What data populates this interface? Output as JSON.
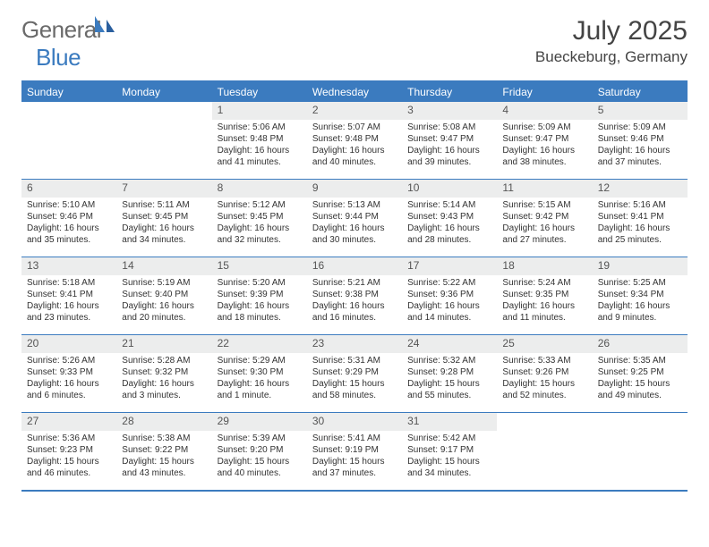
{
  "brand": {
    "part1": "General",
    "part2": "Blue"
  },
  "title": "July 2025",
  "location": "Bueckeburg, Germany",
  "colors": {
    "accent": "#3b7bbf",
    "headerText": "#ffffff",
    "dayNumBg": "#eceded",
    "bodyText": "#333333",
    "logoGray": "#6a6a6a"
  },
  "weekdays": [
    "Sunday",
    "Monday",
    "Tuesday",
    "Wednesday",
    "Thursday",
    "Friday",
    "Saturday"
  ],
  "weeks": [
    [
      {
        "n": "",
        "sr": "",
        "ss": "",
        "dl": "",
        "empty": true
      },
      {
        "n": "",
        "sr": "",
        "ss": "",
        "dl": "",
        "empty": true
      },
      {
        "n": "1",
        "sr": "Sunrise: 5:06 AM",
        "ss": "Sunset: 9:48 PM",
        "dl": "Daylight: 16 hours and 41 minutes."
      },
      {
        "n": "2",
        "sr": "Sunrise: 5:07 AM",
        "ss": "Sunset: 9:48 PM",
        "dl": "Daylight: 16 hours and 40 minutes."
      },
      {
        "n": "3",
        "sr": "Sunrise: 5:08 AM",
        "ss": "Sunset: 9:47 PM",
        "dl": "Daylight: 16 hours and 39 minutes."
      },
      {
        "n": "4",
        "sr": "Sunrise: 5:09 AM",
        "ss": "Sunset: 9:47 PM",
        "dl": "Daylight: 16 hours and 38 minutes."
      },
      {
        "n": "5",
        "sr": "Sunrise: 5:09 AM",
        "ss": "Sunset: 9:46 PM",
        "dl": "Daylight: 16 hours and 37 minutes."
      }
    ],
    [
      {
        "n": "6",
        "sr": "Sunrise: 5:10 AM",
        "ss": "Sunset: 9:46 PM",
        "dl": "Daylight: 16 hours and 35 minutes."
      },
      {
        "n": "7",
        "sr": "Sunrise: 5:11 AM",
        "ss": "Sunset: 9:45 PM",
        "dl": "Daylight: 16 hours and 34 minutes."
      },
      {
        "n": "8",
        "sr": "Sunrise: 5:12 AM",
        "ss": "Sunset: 9:45 PM",
        "dl": "Daylight: 16 hours and 32 minutes."
      },
      {
        "n": "9",
        "sr": "Sunrise: 5:13 AM",
        "ss": "Sunset: 9:44 PM",
        "dl": "Daylight: 16 hours and 30 minutes."
      },
      {
        "n": "10",
        "sr": "Sunrise: 5:14 AM",
        "ss": "Sunset: 9:43 PM",
        "dl": "Daylight: 16 hours and 28 minutes."
      },
      {
        "n": "11",
        "sr": "Sunrise: 5:15 AM",
        "ss": "Sunset: 9:42 PM",
        "dl": "Daylight: 16 hours and 27 minutes."
      },
      {
        "n": "12",
        "sr": "Sunrise: 5:16 AM",
        "ss": "Sunset: 9:41 PM",
        "dl": "Daylight: 16 hours and 25 minutes."
      }
    ],
    [
      {
        "n": "13",
        "sr": "Sunrise: 5:18 AM",
        "ss": "Sunset: 9:41 PM",
        "dl": "Daylight: 16 hours and 23 minutes."
      },
      {
        "n": "14",
        "sr": "Sunrise: 5:19 AM",
        "ss": "Sunset: 9:40 PM",
        "dl": "Daylight: 16 hours and 20 minutes."
      },
      {
        "n": "15",
        "sr": "Sunrise: 5:20 AM",
        "ss": "Sunset: 9:39 PM",
        "dl": "Daylight: 16 hours and 18 minutes."
      },
      {
        "n": "16",
        "sr": "Sunrise: 5:21 AM",
        "ss": "Sunset: 9:38 PM",
        "dl": "Daylight: 16 hours and 16 minutes."
      },
      {
        "n": "17",
        "sr": "Sunrise: 5:22 AM",
        "ss": "Sunset: 9:36 PM",
        "dl": "Daylight: 16 hours and 14 minutes."
      },
      {
        "n": "18",
        "sr": "Sunrise: 5:24 AM",
        "ss": "Sunset: 9:35 PM",
        "dl": "Daylight: 16 hours and 11 minutes."
      },
      {
        "n": "19",
        "sr": "Sunrise: 5:25 AM",
        "ss": "Sunset: 9:34 PM",
        "dl": "Daylight: 16 hours and 9 minutes."
      }
    ],
    [
      {
        "n": "20",
        "sr": "Sunrise: 5:26 AM",
        "ss": "Sunset: 9:33 PM",
        "dl": "Daylight: 16 hours and 6 minutes."
      },
      {
        "n": "21",
        "sr": "Sunrise: 5:28 AM",
        "ss": "Sunset: 9:32 PM",
        "dl": "Daylight: 16 hours and 3 minutes."
      },
      {
        "n": "22",
        "sr": "Sunrise: 5:29 AM",
        "ss": "Sunset: 9:30 PM",
        "dl": "Daylight: 16 hours and 1 minute."
      },
      {
        "n": "23",
        "sr": "Sunrise: 5:31 AM",
        "ss": "Sunset: 9:29 PM",
        "dl": "Daylight: 15 hours and 58 minutes."
      },
      {
        "n": "24",
        "sr": "Sunrise: 5:32 AM",
        "ss": "Sunset: 9:28 PM",
        "dl": "Daylight: 15 hours and 55 minutes."
      },
      {
        "n": "25",
        "sr": "Sunrise: 5:33 AM",
        "ss": "Sunset: 9:26 PM",
        "dl": "Daylight: 15 hours and 52 minutes."
      },
      {
        "n": "26",
        "sr": "Sunrise: 5:35 AM",
        "ss": "Sunset: 9:25 PM",
        "dl": "Daylight: 15 hours and 49 minutes."
      }
    ],
    [
      {
        "n": "27",
        "sr": "Sunrise: 5:36 AM",
        "ss": "Sunset: 9:23 PM",
        "dl": "Daylight: 15 hours and 46 minutes."
      },
      {
        "n": "28",
        "sr": "Sunrise: 5:38 AM",
        "ss": "Sunset: 9:22 PM",
        "dl": "Daylight: 15 hours and 43 minutes."
      },
      {
        "n": "29",
        "sr": "Sunrise: 5:39 AM",
        "ss": "Sunset: 9:20 PM",
        "dl": "Daylight: 15 hours and 40 minutes."
      },
      {
        "n": "30",
        "sr": "Sunrise: 5:41 AM",
        "ss": "Sunset: 9:19 PM",
        "dl": "Daylight: 15 hours and 37 minutes."
      },
      {
        "n": "31",
        "sr": "Sunrise: 5:42 AM",
        "ss": "Sunset: 9:17 PM",
        "dl": "Daylight: 15 hours and 34 minutes."
      },
      {
        "n": "",
        "sr": "",
        "ss": "",
        "dl": "",
        "empty": true
      },
      {
        "n": "",
        "sr": "",
        "ss": "",
        "dl": "",
        "empty": true
      }
    ]
  ]
}
